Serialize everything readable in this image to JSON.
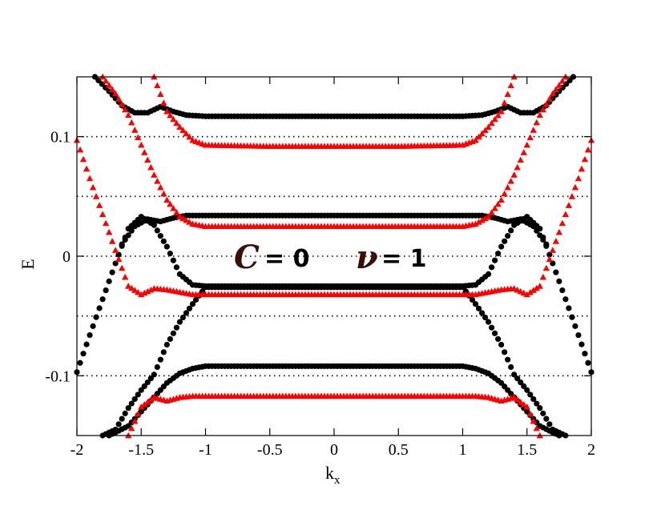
{
  "chart_data": {
    "type": "scatter",
    "title": "",
    "xlabel": "k",
    "xlabel_sub": "x",
    "ylabel": "E",
    "xlim": [
      -2,
      2
    ],
    "ylim": [
      -0.15,
      0.15
    ],
    "x_ticks": [
      -2,
      -1.5,
      -1,
      -0.5,
      0,
      0.5,
      1,
      1.5,
      2
    ],
    "x_tick_labels": [
      "-2",
      "-1.5",
      "-1",
      "-0.5",
      "0",
      "0.5",
      "1",
      "1.5",
      "2"
    ],
    "y_ticks": [
      -0.1,
      0,
      0.1
    ],
    "y_tick_labels": [
      "-0.1",
      "0",
      "0.1"
    ],
    "grid_lines_y": [
      -0.1,
      -0.05,
      0,
      0.05,
      0.1
    ],
    "grid_style": "dotted",
    "legend": "none",
    "annotations": [
      {
        "symbol": "C",
        "text": "= 0"
      },
      {
        "symbol": "ν",
        "text": "= 1"
      }
    ],
    "series": [
      {
        "marker": "circle",
        "color": "#000000",
        "bands": [
          {
            "x": [
              -1.86,
              -1.75,
              -1.65,
              -1.55,
              -1.45,
              -1.35,
              -1.25,
              -1.15,
              -1.0,
              -0.5,
              0,
              0.5,
              1.0,
              1.15,
              1.25,
              1.35,
              1.45,
              1.55,
              1.65,
              1.75,
              1.86
            ],
            "y": [
              0.15,
              0.138,
              0.126,
              0.12,
              0.12,
              0.125,
              0.121,
              0.118,
              0.117,
              0.117,
              0.117,
              0.117,
              0.117,
              0.118,
              0.121,
              0.125,
              0.12,
              0.12,
              0.126,
              0.138,
              0.15
            ]
          },
          {
            "x": [
              -1.65,
              -1.55,
              -1.45,
              -1.35,
              -1.25,
              -1.15,
              -1.0,
              -0.5,
              0,
              0.5,
              1.0,
              1.15,
              1.25,
              1.35,
              1.45,
              1.55,
              1.65
            ],
            "y": [
              0.01,
              0.025,
              0.031,
              0.029,
              0.032,
              0.034,
              0.034,
              0.034,
              0.034,
              0.034,
              0.034,
              0.034,
              0.032,
              0.029,
              0.031,
              0.025,
              0.01
            ]
          },
          {
            "x": [
              -2.0,
              -1.9,
              -1.8,
              -1.7,
              -1.6,
              -1.5,
              -1.4,
              -1.3,
              -1.2,
              -1.1,
              -1.0,
              -0.5,
              0,
              0.5,
              1.0,
              1.1,
              1.2,
              1.3,
              1.4,
              1.5,
              1.6,
              1.7,
              1.8,
              1.9,
              2.0
            ],
            "y": [
              -0.097,
              -0.066,
              -0.036,
              -0.006,
              0.023,
              0.033,
              0.026,
              0.008,
              -0.015,
              -0.024,
              -0.025,
              -0.025,
              -0.025,
              -0.025,
              -0.025,
              -0.024,
              -0.015,
              0.008,
              0.026,
              0.033,
              0.023,
              -0.006,
              -0.036,
              -0.066,
              -0.097
            ]
          },
          {
            "x": [
              -1.8,
              -1.7,
              -1.6,
              -1.5,
              -1.4,
              -1.3,
              -1.2,
              -1.1,
              -1.0,
              -0.5,
              0,
              0.5,
              1.0,
              1.1,
              1.2,
              1.3,
              1.4,
              1.5,
              1.6,
              1.7,
              1.8
            ],
            "y": [
              -0.15,
              -0.145,
              -0.127,
              -0.112,
              -0.099,
              -0.074,
              -0.055,
              -0.04,
              -0.026,
              -0.026,
              -0.026,
              -0.026,
              -0.026,
              -0.04,
              -0.055,
              -0.074,
              -0.099,
              -0.112,
              -0.127,
              -0.145,
              -0.15
            ]
          },
          {
            "x": [
              -1.75,
              -1.6,
              -1.5,
              -1.4,
              -1.3,
              -1.2,
              -1.1,
              -1.0,
              -0.5,
              0,
              0.5,
              1.0,
              1.1,
              1.2,
              1.3,
              1.4,
              1.5,
              1.6,
              1.75
            ],
            "y": [
              -0.15,
              -0.142,
              -0.13,
              -0.118,
              -0.106,
              -0.098,
              -0.094,
              -0.092,
              -0.092,
              -0.092,
              -0.092,
              -0.092,
              -0.094,
              -0.098,
              -0.106,
              -0.118,
              -0.13,
              -0.142,
              -0.15
            ]
          }
        ]
      },
      {
        "marker": "triangle",
        "color": "#ff0000",
        "bands": [
          {
            "x": [
              -1.8,
              -1.7,
              -1.6,
              -1.5,
              -1.4,
              -1.3,
              -1.2,
              -1.1,
              -1.0,
              -0.5,
              0,
              0.5,
              1.0,
              1.1,
              1.2,
              1.3,
              1.4,
              1.5,
              1.6,
              1.7,
              1.8
            ],
            "y": [
              0.15,
              0.136,
              0.118,
              0.093,
              0.068,
              0.047,
              0.033,
              0.027,
              0.025,
              0.025,
              0.025,
              0.025,
              0.025,
              0.027,
              0.033,
              0.047,
              0.068,
              0.093,
              0.118,
              0.136,
              0.15
            ]
          },
          {
            "x": [
              -2.0,
              -1.9,
              -1.8,
              -1.7,
              -1.6,
              -1.5,
              -1.4,
              -1.3,
              -1.2,
              -1.1,
              -1.0,
              -0.5,
              0,
              0.5,
              1.0,
              1.1,
              1.2,
              1.3,
              1.4,
              1.5,
              1.6,
              1.7,
              1.8,
              1.9,
              2.0
            ],
            "y": [
              0.097,
              0.065,
              0.035,
              0.005,
              -0.025,
              -0.032,
              -0.027,
              -0.028,
              -0.03,
              -0.032,
              -0.032,
              -0.032,
              -0.032,
              -0.032,
              -0.032,
              -0.032,
              -0.03,
              -0.028,
              -0.027,
              -0.032,
              -0.025,
              0.005,
              0.035,
              0.065,
              0.097
            ]
          },
          {
            "x": [
              -1.6,
              -1.5,
              -1.4,
              -1.3,
              -1.2,
              -1.1,
              -1.0,
              -0.5,
              0,
              0.5,
              1.0,
              1.1,
              1.2,
              1.3,
              1.4,
              1.5,
              1.6
            ],
            "y": [
              -0.15,
              -0.126,
              -0.118,
              -0.121,
              -0.118,
              -0.117,
              -0.117,
              -0.117,
              -0.117,
              -0.117,
              -0.117,
              -0.117,
              -0.118,
              -0.121,
              -0.118,
              -0.126,
              -0.15
            ]
          },
          {
            "x": [
              -1.4,
              -1.3,
              -1.2,
              -1.1,
              -1.0,
              -0.5,
              0,
              0.5,
              1.0,
              1.1,
              1.2,
              1.3,
              1.4
            ],
            "y": [
              0.15,
              0.121,
              0.108,
              0.097,
              0.093,
              0.092,
              0.092,
              0.092,
              0.093,
              0.097,
              0.108,
              0.121,
              0.15
            ]
          }
        ]
      }
    ]
  }
}
